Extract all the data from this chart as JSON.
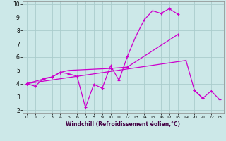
{
  "xlabel": "Windchill (Refroidissement éolien,°C)",
  "xlim": [
    -0.5,
    23.5
  ],
  "ylim": [
    1.8,
    10.2
  ],
  "xticks": [
    0,
    1,
    2,
    3,
    4,
    5,
    6,
    7,
    8,
    9,
    10,
    11,
    12,
    13,
    14,
    15,
    16,
    17,
    18,
    19,
    20,
    21,
    22,
    23
  ],
  "yticks": [
    2,
    3,
    4,
    5,
    6,
    7,
    8,
    9,
    10
  ],
  "background_color": "#cce8e8",
  "grid_color": "#aacccc",
  "line_color": "#cc00cc",
  "line1_x": [
    0,
    1,
    2,
    3,
    4,
    5,
    6,
    7,
    8,
    9,
    10,
    11,
    12,
    13,
    14,
    15,
    16,
    17,
    18
  ],
  "line1_y": [
    4.0,
    3.8,
    4.4,
    4.5,
    4.85,
    4.75,
    4.55,
    2.2,
    3.95,
    3.65,
    5.35,
    4.25,
    6.05,
    7.55,
    8.8,
    9.5,
    9.3,
    9.65,
    9.25
  ],
  "line2_x": [
    0,
    2,
    3,
    4,
    5,
    10,
    12,
    18
  ],
  "line2_y": [
    4.0,
    4.35,
    4.5,
    4.85,
    5.0,
    5.15,
    5.25,
    7.7
  ],
  "line3_x": [
    0,
    19,
    20,
    21
  ],
  "line3_y": [
    4.0,
    5.75,
    3.5,
    2.9
  ],
  "line4_x": [
    20,
    21,
    22,
    23
  ],
  "line4_y": [
    3.5,
    2.9,
    3.45,
    2.8
  ]
}
